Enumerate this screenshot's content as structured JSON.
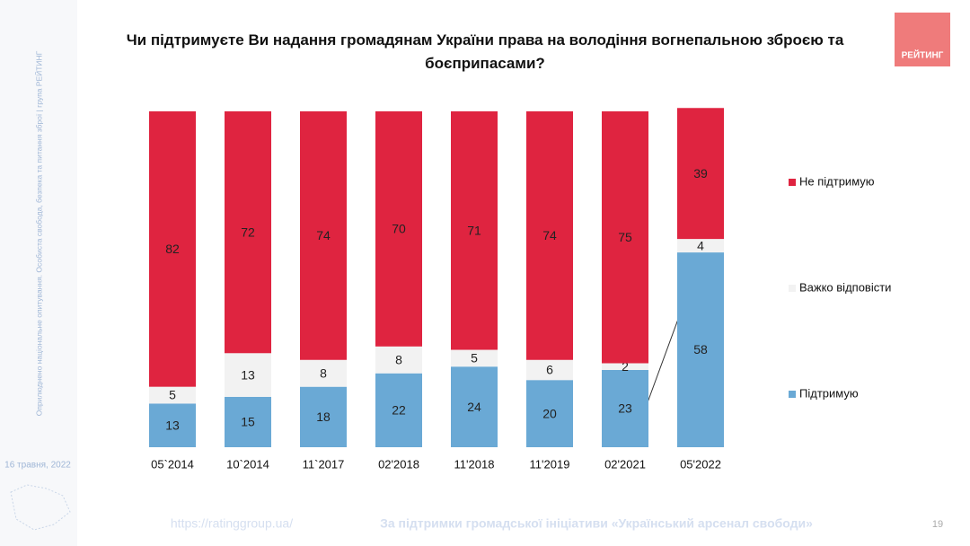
{
  "slide": {
    "side_note": "Оприлюднено національне опитування. Особиста свобода, безпека та питання зброї | група РЕЙТИНГ",
    "date": "16 травня, 2022",
    "logo": "РЕЙТИНГ",
    "url": "https://ratinggroup.ua/",
    "support_note": "За підтримки  громадської ініціативи «Український арсенал свободи»",
    "page": "19"
  },
  "chart_data": {
    "type": "stacked_bar",
    "title": "Чи підтримуєте Ви надання громадянам України права на володіння вогнепальною зброєю та боєприпасами?",
    "categories": [
      "05`2014",
      "10`2014",
      "11`2017",
      "02'2018",
      "11'2018",
      "11'2019",
      "02'2021",
      "05'2022"
    ],
    "series": [
      {
        "name": "Підтримую",
        "color": "#6aa9d5",
        "values": [
          13,
          15,
          18,
          22,
          24,
          20,
          23,
          58
        ]
      },
      {
        "name": "Важко відповісти",
        "color": "#f2f2f2",
        "values": [
          5,
          13,
          8,
          8,
          5,
          6,
          2,
          4
        ]
      },
      {
        "name": "Не підтримую",
        "color": "#df2440",
        "values": [
          82,
          72,
          74,
          70,
          71,
          74,
          75,
          39
        ]
      }
    ],
    "ylim": [
      0,
      100
    ],
    "legend": "right"
  }
}
